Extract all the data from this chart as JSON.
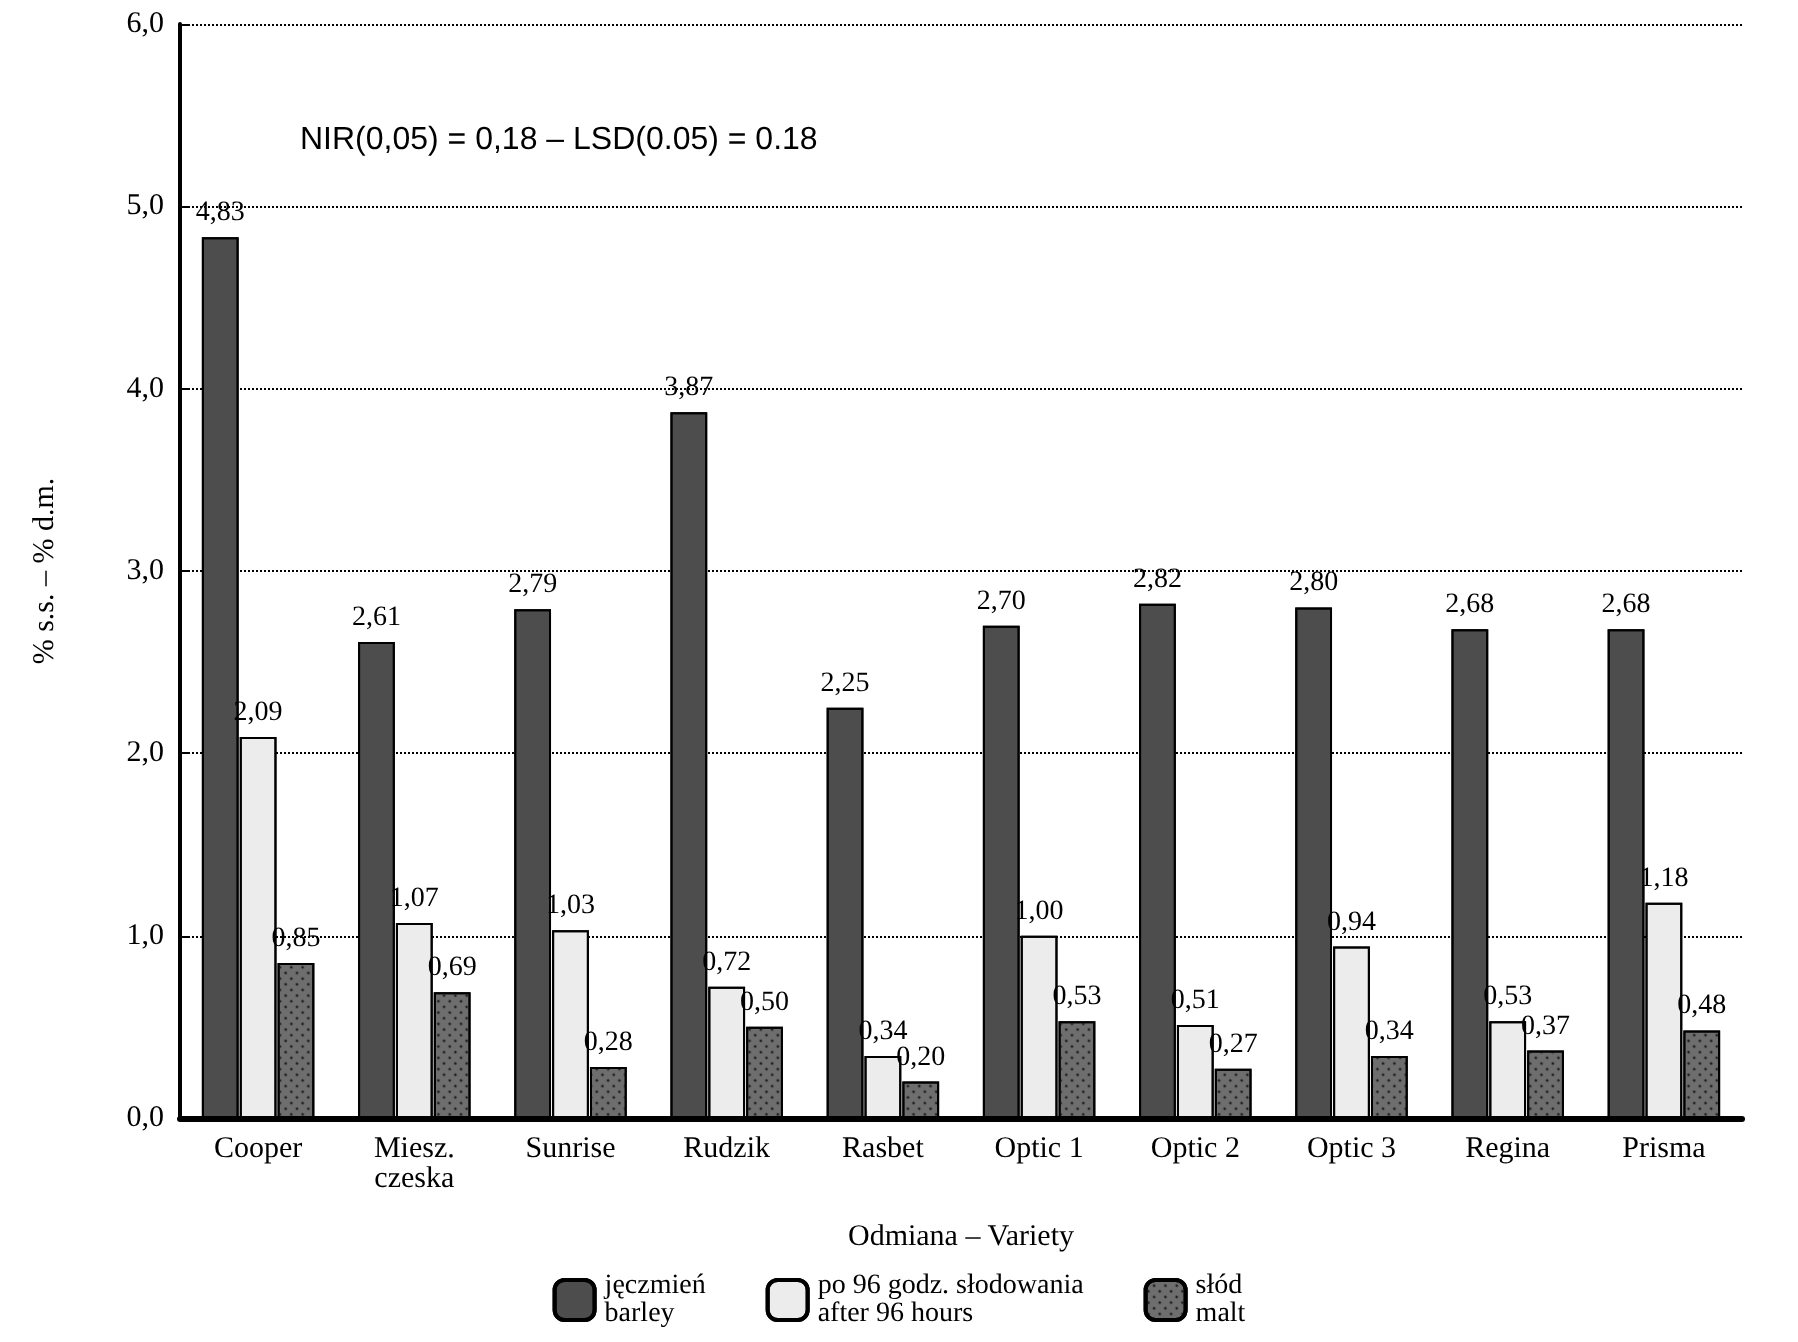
{
  "chart_data": {
    "type": "bar",
    "xlabel": "Odmiana – Variety",
    "ylabel": "% s.s. – % d.m.",
    "categories": [
      "Cooper",
      "Miesz.\nczeska",
      "Sunrise",
      "Rudzik",
      "Rasbet",
      "Optic 1",
      "Optic 2",
      "Optic 3",
      "Regina",
      "Prisma"
    ],
    "series": [
      {
        "name": "jęczmień\nbarley",
        "color": "#9a9a9a",
        "values": [
          4.83,
          2.61,
          2.79,
          3.87,
          2.25,
          2.7,
          2.82,
          2.8,
          2.68,
          2.68
        ],
        "value_labels": [
          "4,83",
          "2,61",
          "2,79",
          "3,87",
          "2,25",
          "2,70",
          "2,82",
          "2,80",
          "2,68",
          "2,68"
        ]
      },
      {
        "name": "po 96 godz. słodowania\nafter 96 hours",
        "color": "#ececec",
        "values": [
          2.09,
          1.07,
          1.03,
          0.72,
          0.34,
          1.0,
          0.51,
          0.94,
          0.53,
          1.18
        ],
        "value_labels": [
          "2,09",
          "1,07",
          "1,03",
          "0,72",
          "0,34",
          "1,00",
          "0,51",
          "0,94",
          "0,53",
          "1,18"
        ]
      },
      {
        "name": "słód\nmalt",
        "color": "#6e6e6e",
        "values": [
          0.85,
          0.69,
          0.28,
          0.5,
          0.2,
          0.53,
          0.27,
          0.34,
          0.37,
          0.48
        ],
        "value_labels": [
          "0,85",
          "0,69",
          "0,28",
          "0,50",
          "0,20",
          "0,53",
          "0,27",
          "0,34",
          "0,37",
          "0,48"
        ]
      }
    ],
    "ylim": [
      0,
      6
    ],
    "yticks": [
      {
        "value": 0,
        "label": "0,0"
      },
      {
        "value": 1,
        "label": "1,0"
      },
      {
        "value": 2,
        "label": "2,0"
      },
      {
        "value": 3,
        "label": "3,0"
      },
      {
        "value": 4,
        "label": "4,0"
      },
      {
        "value": 5,
        "label": "5,0"
      },
      {
        "value": 6,
        "label": "6,0"
      }
    ],
    "grid": "y",
    "line_style": "dotted",
    "legend": "bottom",
    "annotations": [
      "NIR(0,05) = 0,18 – LSD(0.05) = 0.18"
    ]
  }
}
